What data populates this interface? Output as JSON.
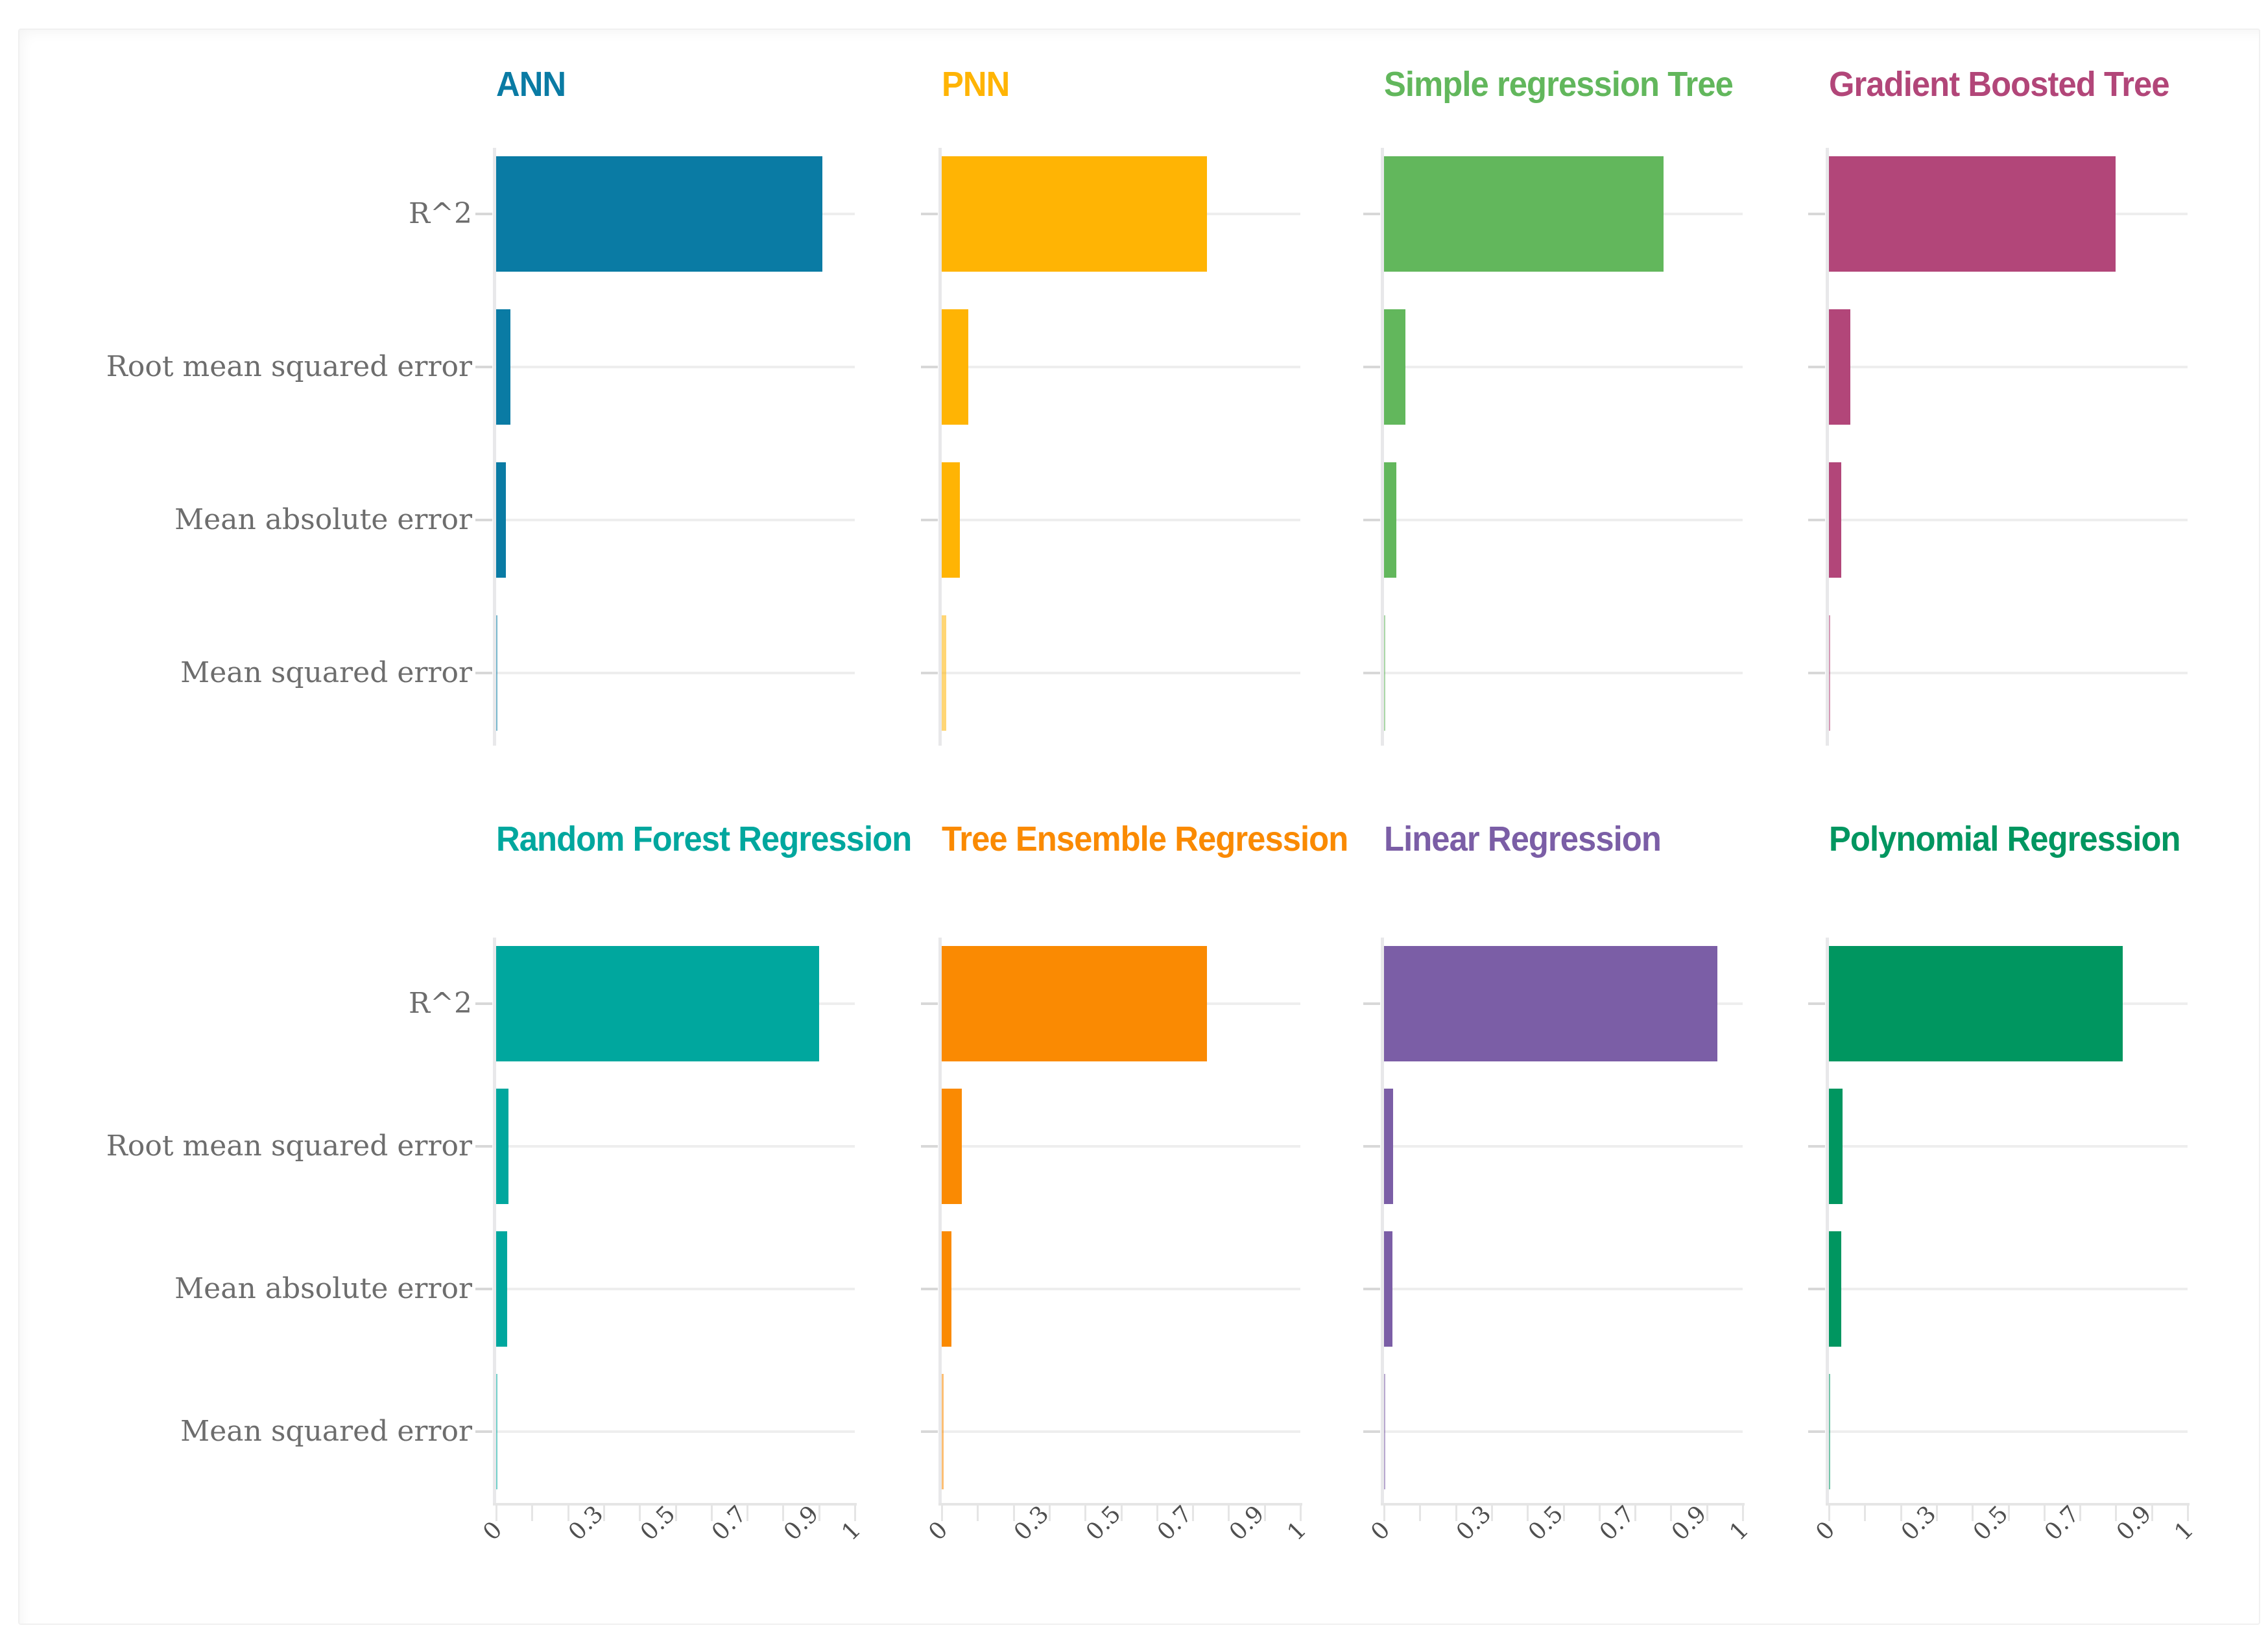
{
  "view": {
    "background": "#ffffff",
    "panel_border_color": "#f0f0f0"
  },
  "colors": {
    "category_label": "#6d6d6d",
    "tick_label": "#4f4f4f",
    "gridline": "#eeeeee",
    "axis_band": "#e8e8ea",
    "axis_line": "#e5e5e5",
    "category_tick": "#d8d8d8"
  },
  "chart_data": {
    "type": "bar",
    "orientation": "horizontal",
    "layout_hint": "2 rows x 4 columns of facets; shared category labels at the left of each row; x axis with rotated labels shown under the bottom row only; horizontal gridline per category; light vertical axis band at x=0 of each facet",
    "categories": [
      "R^2",
      "Root mean squared error",
      "Mean absolute error",
      "Mean squared error"
    ],
    "x_axis": {
      "min": 0,
      "max": 1,
      "tick_step": 0.1,
      "shown_tick_values": [
        0,
        0.3,
        0.5,
        0.7,
        0.9,
        1
      ],
      "shown_tick_labels": [
        "0",
        "0.3",
        "0.5",
        "0.7",
        "0.9",
        "1"
      ],
      "label_rotation_deg": -45,
      "grid": "off"
    },
    "series": [
      {
        "name": "ANN",
        "color": "#0a7ba4",
        "values": [
          0.91,
          0.04,
          0.027,
          0.002
        ]
      },
      {
        "name": "PNN",
        "color": "#ffb404",
        "values": [
          0.74,
          0.075,
          0.05,
          0.012
        ]
      },
      {
        "name": "Simple regression Tree",
        "color": "#62b75c",
        "values": [
          0.78,
          0.06,
          0.034,
          0.004
        ]
      },
      {
        "name": "Gradient Boosted Tree",
        "color": "#b24679",
        "values": [
          0.8,
          0.06,
          0.035,
          0.004
        ]
      },
      {
        "name": "Random Forest Regression",
        "color": "#00a79e",
        "values": [
          0.9,
          0.034,
          0.03,
          0.003
        ]
      },
      {
        "name": "Tree Ensemble Regression",
        "color": "#fa8a02",
        "values": [
          0.74,
          0.056,
          0.028,
          0.006
        ]
      },
      {
        "name": "Linear Regression",
        "color": "#7b5ea6",
        "values": [
          0.93,
          0.026,
          0.023,
          0.002
        ]
      },
      {
        "name": "Polynomial Regression",
        "color": "#009660",
        "values": [
          0.82,
          0.038,
          0.034,
          0.004
        ]
      }
    ]
  }
}
